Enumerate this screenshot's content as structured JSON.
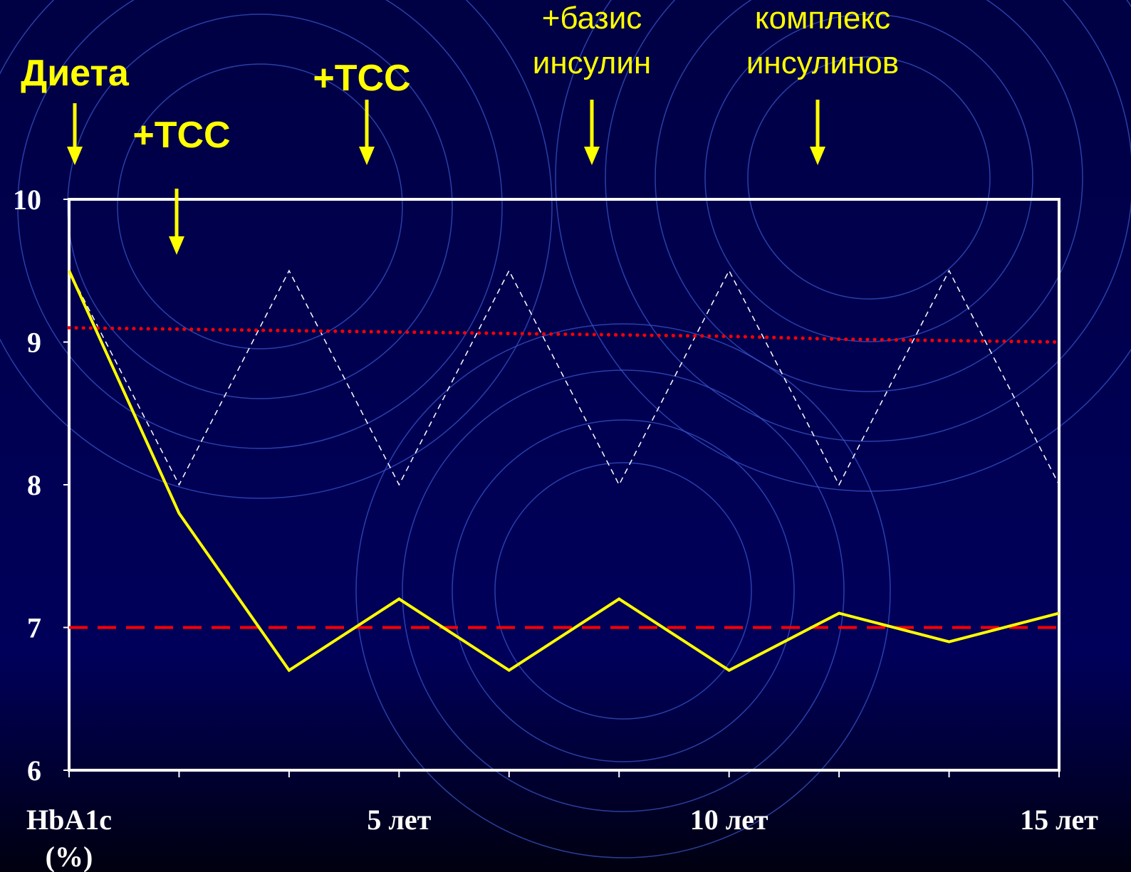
{
  "chart_data": {
    "type": "line",
    "y_label": [
      "HbA1c",
      "(%)"
    ],
    "categories": [
      null,
      null,
      null,
      "5 лет",
      null,
      null,
      "10 лет",
      null,
      null,
      "15 лет"
    ],
    "ylim": [
      6,
      10
    ],
    "yticks": [
      6,
      7,
      8,
      9,
      10
    ],
    "series": [
      {
        "color": "#ffff00",
        "style": "solid",
        "values": [
          9.5,
          7.8,
          6.7,
          7.2,
          6.7,
          7.2,
          6.7,
          7.1,
          6.9,
          7.1
        ]
      },
      {
        "color": "#ffffff",
        "style": "thin-dashed",
        "values": [
          9.5,
          8,
          9.5,
          8,
          9.5,
          8,
          9.5,
          8,
          9.5,
          8
        ]
      },
      {
        "color": "#ff0000",
        "style": "dotted",
        "values": [
          9.1,
          9.09,
          9.08,
          9.07,
          9.06,
          9.05,
          9.04,
          9.02,
          9.01,
          9.0
        ]
      },
      {
        "color": "#ff0000",
        "style": "dashed",
        "values": [
          7,
          7,
          7,
          7,
          7,
          7,
          7,
          7,
          7,
          7
        ]
      }
    ],
    "annotations": [
      {
        "lines": [
          "Диета"
        ]
      },
      {
        "lines": [
          "+ТСС"
        ]
      },
      {
        "lines": [
          "+ТСС"
        ]
      },
      {
        "lines": [
          "+базис",
          "инсулин"
        ]
      },
      {
        "lines": [
          "комплекс",
          "инсулинов"
        ]
      }
    ]
  }
}
